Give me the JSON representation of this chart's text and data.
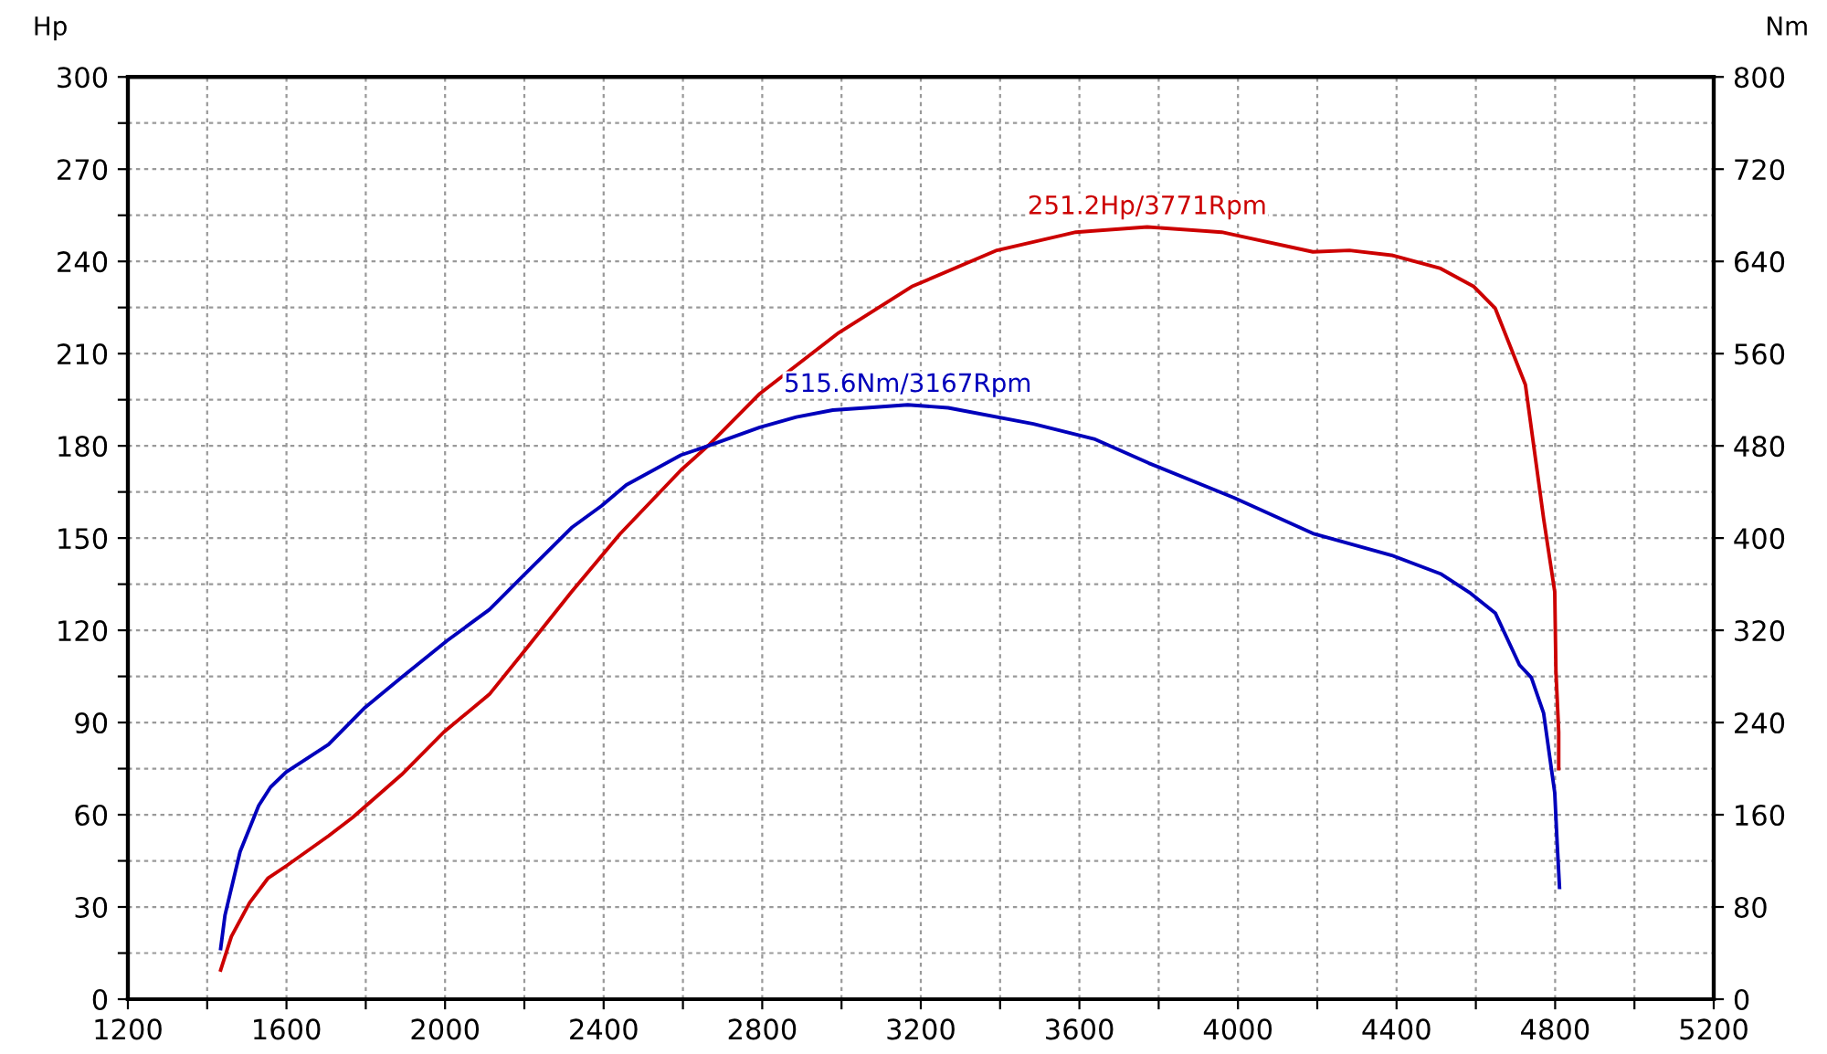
{
  "chart_data": {
    "type": "line",
    "ylabel": "Hp",
    "y2label": "Nm",
    "xlim": [
      1200,
      5200
    ],
    "xticks": [
      1200,
      {
        "value": 1400,
        "label": null
      },
      1600,
      {
        "value": 1800,
        "label": null
      },
      2000,
      {
        "value": 2200,
        "label": null
      },
      2400,
      {
        "value": 2600,
        "label": null
      },
      2800,
      {
        "value": 3000,
        "label": null
      },
      3200,
      {
        "value": 3400,
        "label": null
      },
      3600,
      {
        "value": 3800,
        "label": null
      },
      4000,
      {
        "value": 4200,
        "label": null
      },
      4400,
      {
        "value": 4600,
        "label": null
      },
      4800,
      {
        "value": 5000,
        "label": null
      },
      5200
    ],
    "ylim": [
      0,
      300
    ],
    "yticks": [
      0,
      {
        "value": 15,
        "label": null
      },
      30,
      {
        "value": 45,
        "label": null
      },
      60,
      {
        "value": 75,
        "label": null
      },
      90,
      {
        "value": 105,
        "label": null
      },
      120,
      {
        "value": 135,
        "label": null
      },
      150,
      {
        "value": 165,
        "label": null
      },
      180,
      {
        "value": 195,
        "label": null
      },
      210,
      {
        "value": 225,
        "label": null
      },
      240,
      {
        "value": 255,
        "label": null
      },
      270,
      {
        "value": 285,
        "label": null
      },
      300
    ],
    "y2lim": [
      0,
      800
    ],
    "y2ticks": [
      0,
      80,
      160,
      240,
      320,
      400,
      480,
      560,
      640,
      720,
      800
    ],
    "grid": true,
    "marker": "none",
    "line_style": "solid",
    "legend": false,
    "series": [
      {
        "color": "#cc0000",
        "x": [
          1434,
          1461,
          1507,
          1553,
          1599,
          1706,
          1767,
          1890,
          1997,
          2112,
          2196,
          2319,
          2441,
          2595,
          2664,
          2794,
          2993,
          3177,
          3392,
          3591,
          3771,
          3959,
          4189,
          4281,
          4388,
          4511,
          4595,
          4649,
          4725,
          4771,
          4799,
          4802,
          4809,
          4809
        ],
        "values": [
          9.5,
          20.4,
          31.4,
          39.3,
          43.3,
          53.1,
          59.1,
          73,
          86.9,
          99.2,
          112.6,
          132.5,
          151.3,
          172.1,
          180.1,
          197,
          216.8,
          231.8,
          243.6,
          249.5,
          251.2,
          249.5,
          243.1,
          243.6,
          242,
          237.7,
          231.8,
          224.7,
          199.9,
          156.3,
          132.5,
          106.7,
          86.9,
          75
        ]
      },
      {
        "color": "#0000bb",
        "axis": "y2",
        "x": [
          1434,
          1445,
          1483,
          1530,
          1560,
          1599,
          1706,
          1798,
          1890,
          2005,
          2112,
          2196,
          2319,
          2395,
          2457,
          2595,
          2664,
          2794,
          2886,
          2978,
          3062,
          3167,
          3269,
          3484,
          3637,
          3775,
          3990,
          4189,
          4388,
          4511,
          4587,
          4649,
          4710,
          4740,
          4771,
          4799,
          4805,
          4811
        ],
        "values": [
          44,
          73,
          128,
          168,
          184,
          197,
          221,
          253,
          279,
          311,
          338,
          367,
          409,
          428,
          446,
          472,
          480,
          496,
          505,
          511,
          513,
          515.6,
          513,
          499,
          486,
          465,
          435,
          404,
          385,
          369,
          352,
          335,
          290,
          279,
          248,
          179,
          136,
          97
        ]
      }
    ],
    "annotations": [
      {
        "text": "251.2Hp/3771Rpm",
        "x": 3771,
        "y": 251.2
      },
      "515.6Nm/3167Rpm"
    ]
  }
}
